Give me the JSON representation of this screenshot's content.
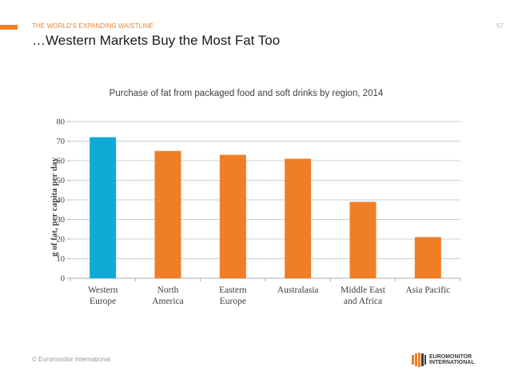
{
  "header": {
    "section_label": "THE WORLD'S EXPANDING WAISTLINE",
    "page_number": "67",
    "title": "…Western Markets Buy the Most Fat Too"
  },
  "footer": {
    "copyright": "© Euromonitor International",
    "logo_line1": "EUROMONITOR",
    "logo_line2": "INTERNATIONAL"
  },
  "colors": {
    "accent": "#f07e26",
    "highlight": "#10aad6",
    "grid": "#bfbfbf"
  },
  "chart_data": {
    "type": "bar",
    "title": "Purchase of fat from packaged food and soft drinks by region, 2014",
    "xlabel": "",
    "ylabel": "g of fat, per capita per day",
    "ylim": [
      0,
      80
    ],
    "yticks": [
      0,
      10,
      20,
      30,
      40,
      50,
      60,
      70,
      80
    ],
    "grid": true,
    "categories": [
      [
        "Western",
        "Europe"
      ],
      [
        "North",
        "America"
      ],
      [
        "Eastern",
        "Europe"
      ],
      [
        "Australasia"
      ],
      [
        "Middle East",
        "and Africa"
      ],
      [
        "Asia Pacific"
      ]
    ],
    "values": [
      72,
      65,
      63,
      61,
      39,
      21
    ],
    "bar_colors": [
      "#10aad6",
      "#f07e26",
      "#f07e26",
      "#f07e26",
      "#f07e26",
      "#f07e26"
    ]
  }
}
